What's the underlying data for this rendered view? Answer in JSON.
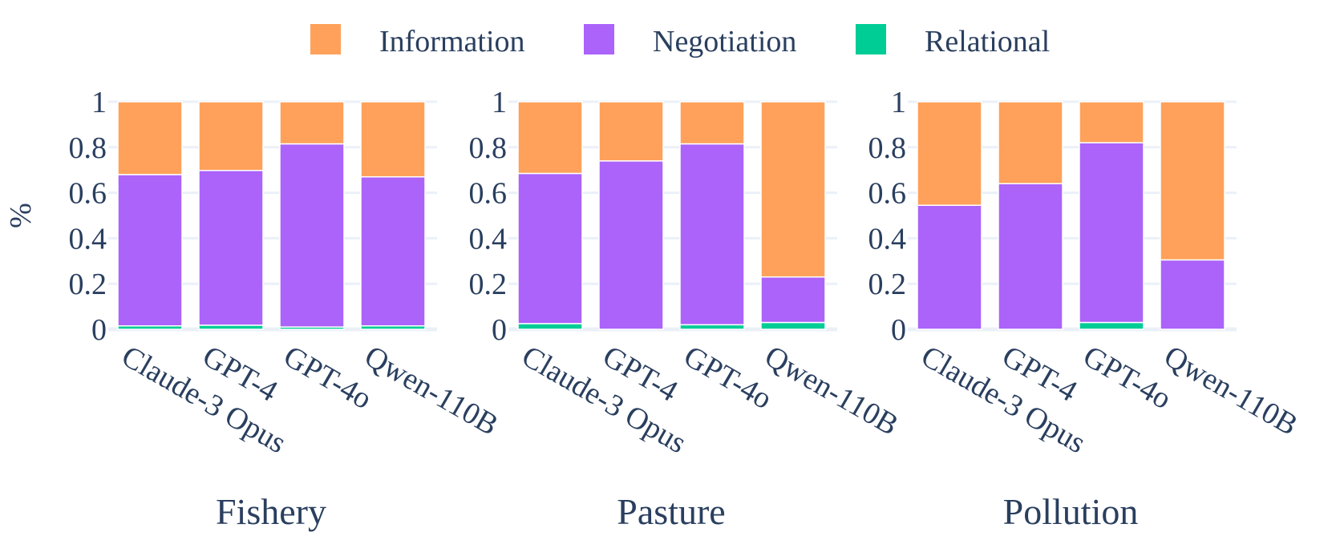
{
  "chart_data": {
    "type": "bar",
    "stacked": true,
    "ylabel": "%",
    "ylim": [
      0,
      1
    ],
    "yticks": [
      "0",
      "0.2",
      "0.4",
      "0.6",
      "0.8",
      "1"
    ],
    "ytick_values": [
      0,
      0.2,
      0.4,
      0.6,
      0.8,
      1
    ],
    "grid": true,
    "legend_position": "top-center",
    "categories": [
      "Claude-3 Opus",
      "GPT-4",
      "GPT-4o",
      "Qwen-110B"
    ],
    "series_order": [
      "Relational",
      "Negotiation",
      "Information"
    ],
    "legend": [
      {
        "name": "Information",
        "color": "#FFA15A"
      },
      {
        "name": "Negotiation",
        "color": "#AB63FA"
      },
      {
        "name": "Relational",
        "color": "#00CC96"
      }
    ],
    "panels": [
      {
        "title": "Fishery",
        "series": [
          {
            "name": "Relational",
            "values": [
              0.015,
              0.018,
              0.01,
              0.015
            ]
          },
          {
            "name": "Negotiation",
            "values": [
              0.665,
              0.68,
              0.805,
              0.655
            ]
          },
          {
            "name": "Information",
            "values": [
              0.32,
              0.302,
              0.185,
              0.33
            ]
          }
        ]
      },
      {
        "title": "Pasture",
        "series": [
          {
            "name": "Relational",
            "values": [
              0.025,
              0.0,
              0.02,
              0.03
            ]
          },
          {
            "name": "Negotiation",
            "values": [
              0.66,
              0.74,
              0.795,
              0.2
            ]
          },
          {
            "name": "Information",
            "values": [
              0.315,
              0.26,
              0.185,
              0.77
            ]
          }
        ]
      },
      {
        "title": "Pollution",
        "series": [
          {
            "name": "Relational",
            "values": [
              0.0,
              0.0,
              0.03,
              0.0
            ]
          },
          {
            "name": "Negotiation",
            "values": [
              0.545,
              0.64,
              0.79,
              0.305
            ]
          },
          {
            "name": "Information",
            "values": [
              0.455,
              0.36,
              0.18,
              0.695
            ]
          }
        ]
      }
    ]
  }
}
